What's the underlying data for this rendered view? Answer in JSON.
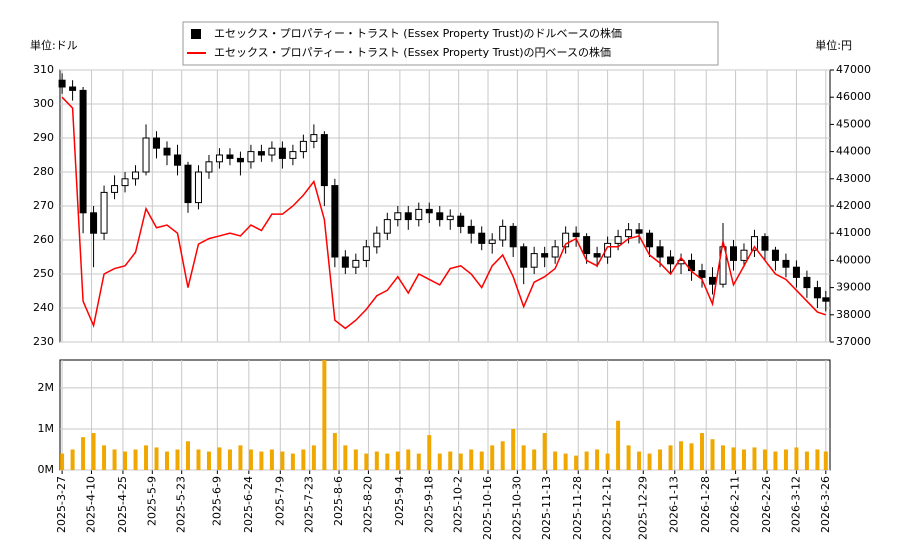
{
  "chart_data": [
    {
      "type": "candlestick",
      "ylabel": "単位:ドル",
      "y2label": "単位:円",
      "grid": true,
      "legend": "top",
      "x": [
        "2025-3-27",
        "2025-4-1",
        "2025-4-6",
        "2025-4-11",
        "2025-4-16",
        "2025-4-21",
        "2025-4-26",
        "2025-5-1",
        "2025-5-6",
        "2025-5-11",
        "2025-5-16",
        "2025-5-21",
        "2025-5-26",
        "2025-5-31",
        "2025-6-5",
        "2025-6-10",
        "2025-6-15",
        "2025-6-20",
        "2025-6-25",
        "2025-6-30",
        "2025-7-5",
        "2025-7-10",
        "2025-7-15",
        "2025-7-20",
        "2025-7-25",
        "2025-7-30",
        "2025-8-4",
        "2025-8-9",
        "2025-8-14",
        "2025-8-19",
        "2025-8-24",
        "2025-8-29",
        "2025-9-3",
        "2025-9-8",
        "2025-9-13",
        "2025-9-18",
        "2025-9-23",
        "2025-9-28",
        "2025-10-3",
        "2025-10-8",
        "2025-10-13",
        "2025-10-18",
        "2025-10-23",
        "2025-10-28",
        "2025-11-2",
        "2025-11-7",
        "2025-11-12",
        "2025-11-17",
        "2025-11-22",
        "2025-11-27",
        "2025-12-2",
        "2025-12-7",
        "2025-12-12",
        "2025-12-17",
        "2025-12-22",
        "2025-12-27",
        "2026-1-1",
        "2026-1-6",
        "2026-1-11",
        "2026-1-16",
        "2026-1-21",
        "2026-1-26",
        "2026-1-31",
        "2026-2-5",
        "2026-2-10",
        "2026-2-15",
        "2026-2-20",
        "2026-2-25",
        "2026-3-2",
        "2026-3-7",
        "2026-3-12",
        "2026-3-17",
        "2026-3-22",
        "2026-3-26"
      ],
      "xlim": [
        "2025-3-26",
        "2026-3-28"
      ],
      "ylim": [
        230,
        310
      ],
      "yticks": [
        230,
        240,
        250,
        260,
        270,
        280,
        290,
        300,
        310
      ],
      "y2lim": [
        37000,
        47000
      ],
      "y2ticks": [
        37000,
        38000,
        39000,
        40000,
        41000,
        42000,
        43000,
        44000,
        45000,
        46000,
        47000
      ],
      "series": [
        {
          "name": "エセックス・プロパティー・トラスト (Essex Property Trust)のドルベースの株価",
          "color": "#000000",
          "open": [
            307,
            305,
            304,
            268,
            262,
            274,
            276,
            278,
            280,
            290,
            287,
            285,
            282,
            271,
            280,
            283,
            285,
            284,
            283,
            286,
            285,
            287,
            284,
            286,
            289,
            291,
            276,
            255,
            252,
            254,
            258,
            262,
            266,
            268,
            266,
            269,
            268,
            266,
            267,
            264,
            262,
            259,
            260,
            264,
            258,
            252,
            256,
            255,
            258,
            262,
            261,
            256,
            255,
            259,
            261,
            263,
            262,
            258,
            255,
            253,
            254,
            251,
            249,
            247,
            258,
            254,
            257,
            261,
            257,
            254,
            252,
            249,
            246,
            243
          ],
          "high": [
            309,
            307,
            305,
            270,
            276,
            279,
            280,
            282,
            294,
            292,
            289,
            288,
            283,
            282,
            285,
            287,
            287,
            286,
            288,
            288,
            289,
            289,
            288,
            291,
            294,
            292,
            278,
            257,
            256,
            260,
            264,
            268,
            270,
            270,
            271,
            271,
            270,
            269,
            268,
            266,
            264,
            262,
            266,
            265,
            259,
            258,
            258,
            260,
            264,
            264,
            262,
            258,
            261,
            263,
            265,
            265,
            263,
            260,
            257,
            256,
            256,
            253,
            252,
            265,
            260,
            259,
            263,
            262,
            258,
            256,
            254,
            251,
            248,
            245
          ],
          "low": [
            303,
            301,
            262,
            252,
            260,
            272,
            274,
            276,
            279,
            284,
            282,
            279,
            268,
            269,
            278,
            281,
            282,
            279,
            281,
            283,
            283,
            281,
            282,
            284,
            287,
            270,
            252,
            250,
            250,
            252,
            256,
            260,
            264,
            263,
            264,
            265,
            264,
            263,
            262,
            259,
            257,
            256,
            258,
            255,
            247,
            250,
            252,
            253,
            256,
            258,
            253,
            252,
            253,
            257,
            259,
            259,
            255,
            252,
            250,
            250,
            248,
            246,
            244,
            246,
            251,
            252,
            255,
            254,
            251,
            249,
            246,
            243,
            240,
            239
          ],
          "close": [
            305,
            304,
            268,
            262,
            274,
            276,
            278,
            280,
            290,
            287,
            285,
            282,
            271,
            280,
            283,
            285,
            284,
            283,
            286,
            285,
            287,
            284,
            286,
            289,
            291,
            276,
            255,
            252,
            254,
            258,
            262,
            266,
            268,
            266,
            269,
            268,
            266,
            267,
            264,
            262,
            259,
            260,
            264,
            258,
            252,
            256,
            255,
            258,
            262,
            261,
            256,
            255,
            259,
            261,
            263,
            262,
            258,
            255,
            253,
            254,
            251,
            249,
            247,
            258,
            254,
            257,
            261,
            257,
            254,
            252,
            249,
            246,
            243,
            242
          ]
        },
        {
          "name": "エセックス・プロパティー・トラスト (Essex Property Trust)の円ベースの株価",
          "color": "#ff0000",
          "axis": "y2",
          "values": [
            46000,
            45600,
            38500,
            37600,
            39500,
            39700,
            39800,
            40300,
            41900,
            41200,
            41300,
            41000,
            39000,
            40600,
            40800,
            40900,
            41000,
            40900,
            41300,
            41100,
            41700,
            41700,
            42000,
            42400,
            42900,
            41500,
            37800,
            37500,
            37800,
            38200,
            38700,
            38900,
            39400,
            38800,
            39500,
            39300,
            39100,
            39700,
            39800,
            39500,
            39000,
            39800,
            40200,
            39400,
            38300,
            39200,
            39400,
            39700,
            40600,
            40800,
            40000,
            39800,
            40500,
            40500,
            40800,
            40900,
            40200,
            39900,
            39500,
            40100,
            39600,
            39300,
            38400,
            40700,
            39100,
            39800,
            40500,
            40000,
            39500,
            39300,
            38900,
            38500,
            38100,
            38000
          ]
        }
      ]
    },
    {
      "type": "bar",
      "color": "#f0a800",
      "grid": true,
      "ylim": [
        0,
        2680000
      ],
      "yticks": [
        {
          "value": 0,
          "label": "0M"
        },
        {
          "value": 1000000,
          "label": "1M"
        },
        {
          "value": 2000000,
          "label": "2M"
        }
      ],
      "xticks": [
        "2025-3-27",
        "2025-4-10",
        "2025-4-25",
        "2025-5-9",
        "2025-5-23",
        "2025-6-9",
        "2025-6-24",
        "2025-7-9",
        "2025-7-23",
        "2025-8-6",
        "2025-8-20",
        "2025-9-4",
        "2025-9-18",
        "2025-10-2",
        "2025-10-16",
        "2025-10-30",
        "2025-11-13",
        "2025-11-28",
        "2025-12-12",
        "2025-12-29",
        "2026-1-13",
        "2026-1-28",
        "2026-2-11",
        "2026-2-26",
        "2026-3-12",
        "2026-3-26"
      ],
      "values": [
        400000,
        500000,
        800000,
        900000,
        600000,
        500000,
        450000,
        500000,
        600000,
        550000,
        450000,
        500000,
        700000,
        500000,
        450000,
        550000,
        500000,
        600000,
        500000,
        450000,
        500000,
        450000,
        400000,
        500000,
        600000,
        2700000,
        900000,
        600000,
        500000,
        400000,
        450000,
        400000,
        450000,
        500000,
        400000,
        850000,
        400000,
        450000,
        400000,
        500000,
        450000,
        600000,
        700000,
        1000000,
        600000,
        500000,
        900000,
        450000,
        400000,
        350000,
        450000,
        500000,
        400000,
        1200000,
        600000,
        450000,
        400000,
        500000,
        600000,
        700000,
        650000,
        900000,
        750000,
        600000,
        550000,
        500000,
        550000,
        500000,
        450000,
        500000,
        550000,
        450000,
        500000,
        450000
      ]
    }
  ]
}
